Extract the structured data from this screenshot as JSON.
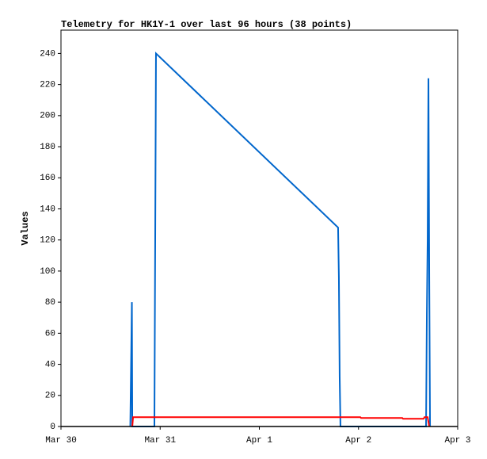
{
  "chart_data": {
    "type": "line",
    "title": "Telemetry for HK1Y-1 over last 96 hours (38 points)",
    "y_label": "Values",
    "xlim": [
      0,
      4
    ],
    "xticks": [
      {
        "value": 0,
        "label": "Mar 30"
      },
      {
        "value": 1,
        "label": "Mar 31"
      },
      {
        "value": 2,
        "label": "Apr 1"
      },
      {
        "value": 3,
        "label": "Apr 2"
      },
      {
        "value": 4,
        "label": "Apr 3"
      }
    ],
    "ylim": [
      0,
      255
    ],
    "yticks": [
      0,
      20,
      40,
      60,
      80,
      100,
      120,
      140,
      160,
      180,
      200,
      220,
      240
    ],
    "series": [
      {
        "color": "#0066cc",
        "x": [
          0.699,
          0.707,
          0.715,
          0.719,
          0.942,
          0.95,
          0.958,
          2.794,
          2.802,
          2.81,
          2.818,
          3.681,
          3.689,
          3.697,
          3.705,
          3.713,
          3.721
        ],
        "values": [
          0,
          40,
          80,
          0,
          0,
          120,
          240,
          128,
          96,
          32,
          0,
          0,
          72,
          120,
          224,
          96,
          0
        ]
      },
      {
        "color": "#ff0000",
        "x": [
          0.719,
          0.727,
          3.018,
          3.026,
          3.441,
          3.449,
          3.657,
          3.665,
          3.697,
          3.713
        ],
        "values": [
          0,
          6,
          6,
          5.5,
          5.5,
          5,
          5,
          6,
          6,
          0
        ]
      }
    ]
  }
}
